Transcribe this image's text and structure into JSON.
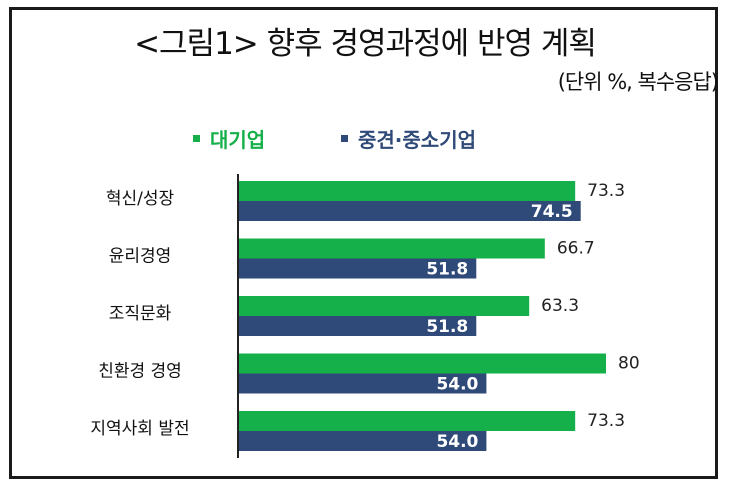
{
  "title": "<그림1> 향후 경영과정에 반영 계획",
  "subtitle": "(단위 %, 복수응답)",
  "colors": {
    "large": "#16b04a",
    "sme": "#2f4a78",
    "axis": "#222222"
  },
  "legend": [
    {
      "label": "대기업",
      "color": "#16b04a"
    },
    {
      "label": "중견·중소기업",
      "color": "#2f4a78"
    }
  ],
  "chart_data": {
    "type": "bar",
    "orientation": "horizontal",
    "categories": [
      "혁신/성장",
      "윤리경영",
      "조직문화",
      "친환경 경영",
      "지역사회 발전"
    ],
    "series": [
      {
        "name": "대기업",
        "values": [
          73.3,
          66.7,
          63.3,
          80,
          73.3
        ],
        "labels": [
          "73.3",
          "66.7",
          "63.3",
          "80",
          "73.3"
        ]
      },
      {
        "name": "중견·중소기업",
        "values": [
          74.5,
          51.8,
          51.8,
          54.0,
          54.0
        ],
        "labels": [
          "74.5",
          "51.8",
          "51.8",
          "54.0",
          "54.0"
        ]
      }
    ],
    "xlim": [
      0,
      100
    ],
    "grid": false,
    "legend_position": "top"
  }
}
